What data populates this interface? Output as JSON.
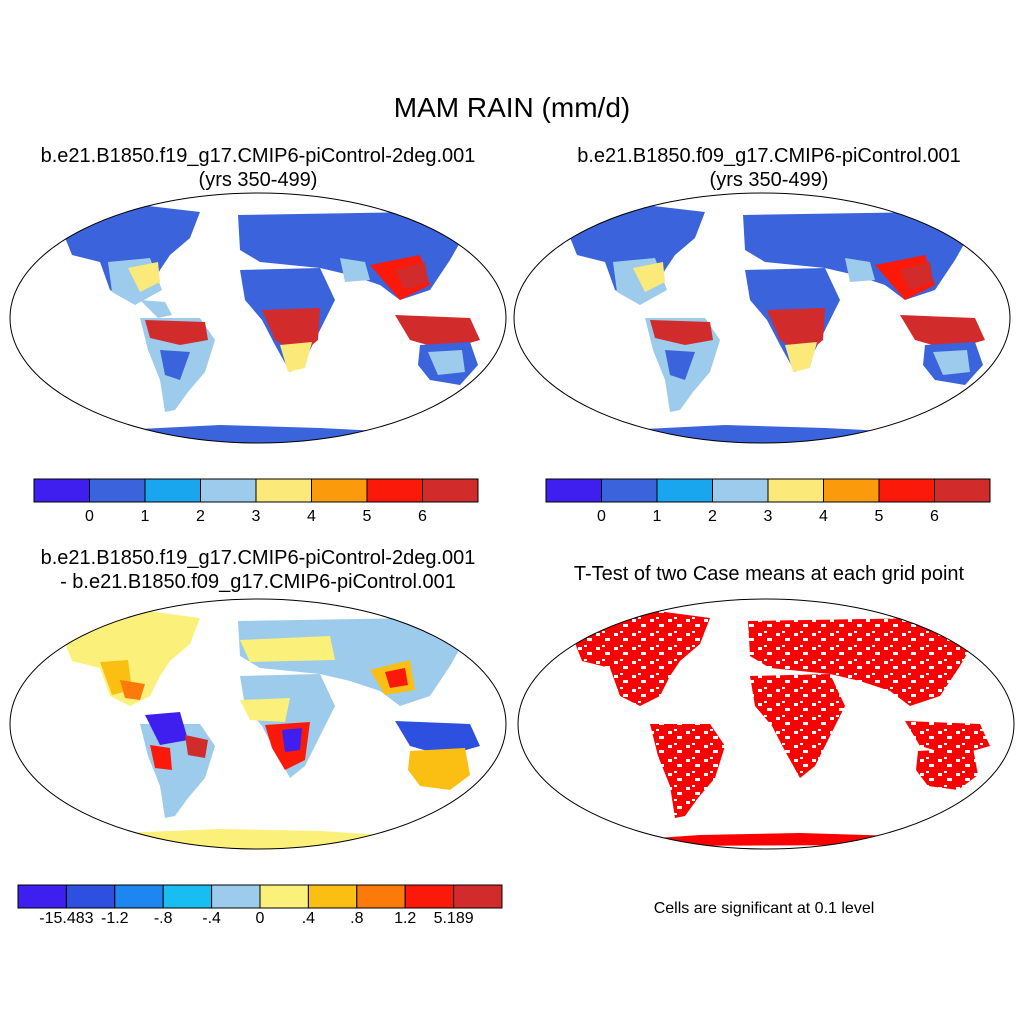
{
  "title": "MAM RAIN (mm/d)",
  "panels": [
    {
      "line1": "b.e21.B1850.f19_g17.CMIP6-piControl-2deg.001",
      "line2": "(yrs 350-499)"
    },
    {
      "line1": "b.e21.B1850.f09_g17.CMIP6-piControl.001",
      "line2": "(yrs 350-499)"
    },
    {
      "line1": "b.e21.B1850.f19_g17.CMIP6-piControl-2deg.001",
      "line2": "- b.e21.B1850.f09_g17.CMIP6-piControl.001"
    },
    {
      "line1": "T-Test of two Case means at each grid point",
      "line2": ""
    }
  ],
  "colorbars": {
    "rain": {
      "colors": [
        "#3f1ff0",
        "#3a63dc",
        "#1aa6ee",
        "#9ccbeb",
        "#fbe97a",
        "#fb9a0a",
        "#fb1a0a",
        "#d12b2b"
      ],
      "labels": [
        "0",
        "1",
        "2",
        "3",
        "4",
        "5",
        "6"
      ]
    },
    "diff": {
      "colors": [
        "#3f1ff0",
        "#2e50e0",
        "#1e86f0",
        "#18bdf2",
        "#9ccbeb",
        "#fbf07a",
        "#fbbf14",
        "#fb7a0a",
        "#fb1a0a",
        "#d12b2b"
      ],
      "labels": [
        "-15.483",
        "-1.2",
        "-.8",
        "-.4",
        "0",
        ".4",
        ".8",
        "1.2",
        "5.189"
      ]
    }
  },
  "significance_note": "Cells are significant at 0.1 level"
}
